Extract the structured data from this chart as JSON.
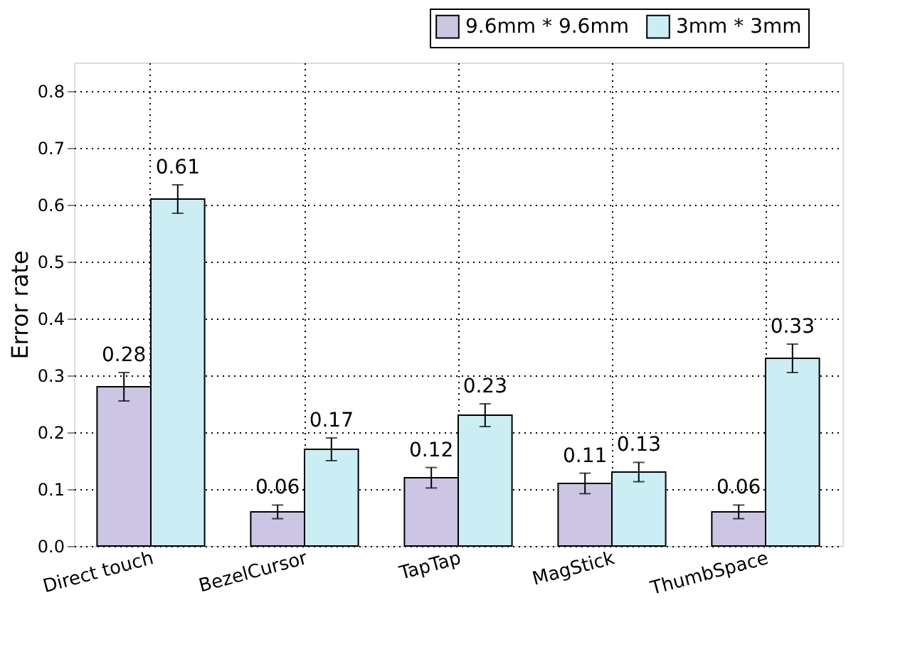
{
  "chart_data": {
    "type": "bar",
    "ylabel": "Error rate",
    "categories": [
      "Direct touch",
      "BezelCursor",
      "TapTap",
      "MagStick",
      "ThumbSpace"
    ],
    "series": [
      {
        "name": "9.6mm * 9.6mm",
        "color": "#ccc5e3",
        "values": [
          0.28,
          0.06,
          0.12,
          0.11,
          0.06
        ],
        "errors": [
          0.025,
          0.012,
          0.018,
          0.018,
          0.012
        ]
      },
      {
        "name": "3mm * 3mm",
        "color": "#cbeef5",
        "values": [
          0.61,
          0.17,
          0.23,
          0.13,
          0.33
        ],
        "errors": [
          0.025,
          0.02,
          0.02,
          0.017,
          0.025
        ]
      }
    ],
    "ylim": [
      0,
      0.85
    ],
    "yticks": [
      {
        "value": 0,
        "label": "0.0"
      },
      0.1,
      0.2,
      0.3,
      0.4,
      0.5,
      0.6,
      0.7,
      0.8
    ],
    "grid": true,
    "legend": "top right",
    "data_labels": true
  }
}
